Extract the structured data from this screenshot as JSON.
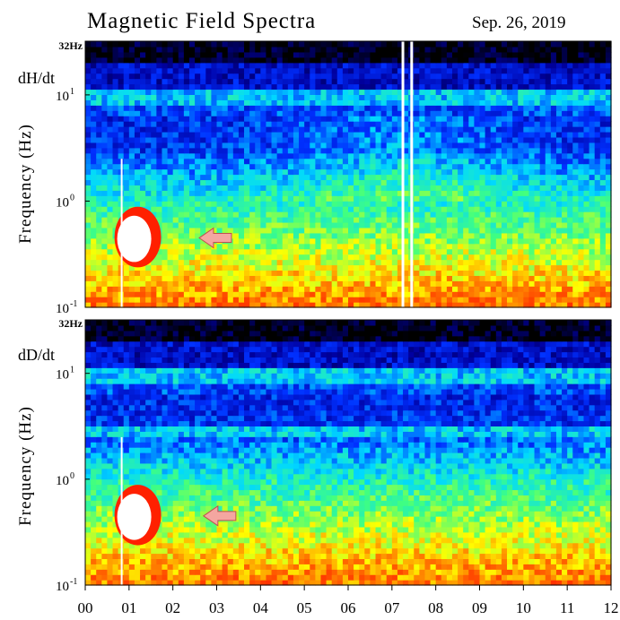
{
  "chart_data": {
    "type": "heatmap",
    "title": "Magnetic Field Spectra",
    "date": "Sep. 26, 2019",
    "ylabel": "Frequency  (Hz)",
    "yscale": "log",
    "ylim": [
      0.1,
      32
    ],
    "y_top_label": "32Hz",
    "y_ticks": [
      {
        "base": "10",
        "exp": "1",
        "value": 10
      },
      {
        "base": "10",
        "exp": "0",
        "value": 1
      },
      {
        "base": "10",
        "exp": "-1",
        "value": 0.1
      }
    ],
    "x_ticks": [
      "00",
      "01",
      "02",
      "03",
      "04",
      "05",
      "06",
      "07",
      "08",
      "09",
      "10",
      "11",
      "12"
    ],
    "xlim": [
      0,
      12
    ],
    "grid": false,
    "colorscale": [
      "#000000",
      "#0000a0",
      "#0030ff",
      "#00d8ff",
      "#40ff80",
      "#ffff00",
      "#ff6000",
      "#ff0000",
      "#ffffff"
    ],
    "panels": [
      {
        "name": "dH/dt",
        "features": [
          {
            "kind": "low-frequency burst",
            "time": 1.2,
            "freq_range": [
              0.3,
              0.7
            ],
            "color": "#ffffff"
          },
          {
            "kind": "arrow marker",
            "time": 2.6,
            "freq": 0.45,
            "color": "#f4a6a0"
          },
          {
            "kind": "data gap",
            "time": 7.25
          },
          {
            "kind": "data gap",
            "time": 7.45
          }
        ]
      },
      {
        "name": "dD/dt",
        "features": [
          {
            "kind": "low-frequency burst",
            "time": 1.2,
            "freq_range": [
              0.3,
              0.7
            ],
            "color": "#ffffff"
          },
          {
            "kind": "arrow marker",
            "time": 2.7,
            "freq": 0.45,
            "color": "#f4a6a0"
          }
        ]
      }
    ]
  }
}
